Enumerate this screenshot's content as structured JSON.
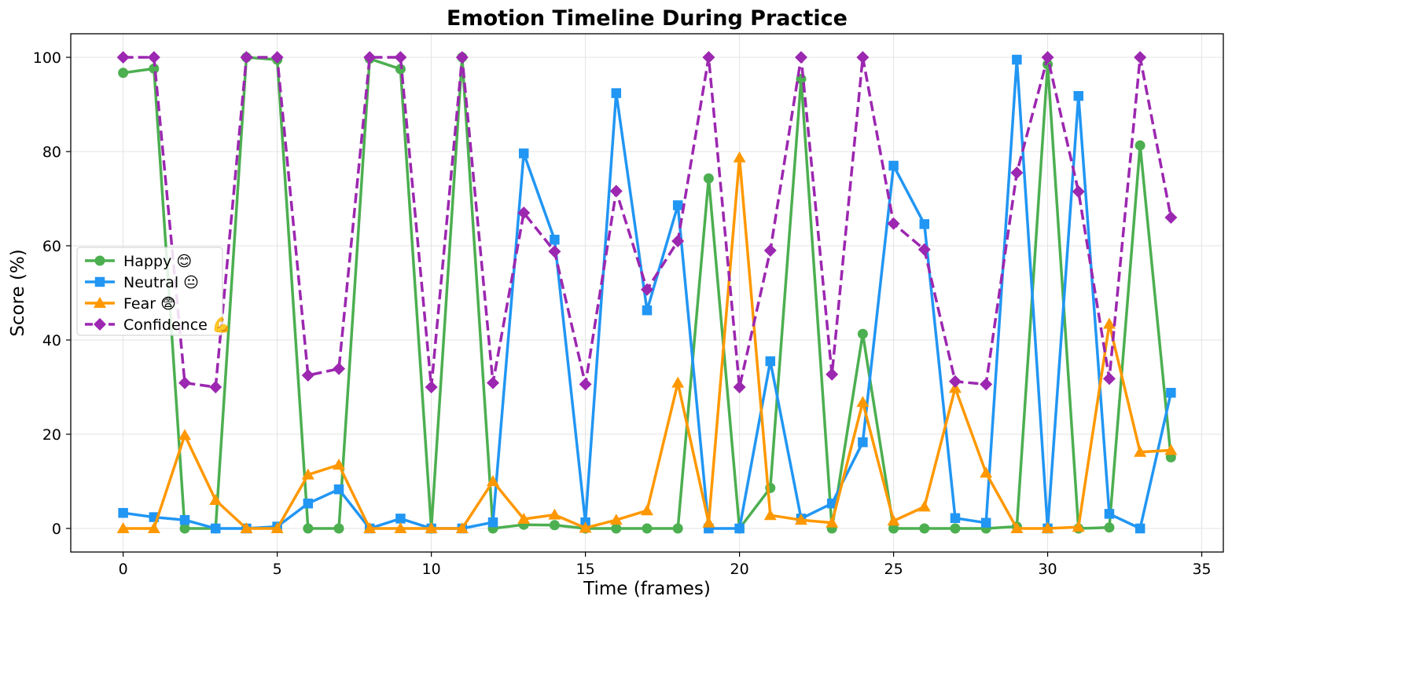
{
  "chart_data": {
    "type": "line",
    "title": "Emotion Timeline During Practice",
    "xlabel": "Time (frames)",
    "ylabel": "Score (%)",
    "xlim": [
      -1.7,
      35.7
    ],
    "ylim": [
      -5,
      105
    ],
    "xticks": [
      0,
      5,
      10,
      15,
      20,
      25,
      30,
      35
    ],
    "yticks": [
      0,
      20,
      40,
      60,
      80,
      100
    ],
    "grid": true,
    "legend_position": "center-left",
    "x": [
      0,
      1,
      2,
      3,
      4,
      5,
      6,
      7,
      8,
      9,
      10,
      11,
      12,
      13,
      14,
      15,
      16,
      17,
      18,
      19,
      20,
      21,
      22,
      23,
      24,
      25,
      26,
      27,
      28,
      29,
      30,
      31,
      32,
      33,
      34
    ],
    "series": [
      {
        "name": "Happy 😊",
        "color": "#4caf50",
        "marker": "circle",
        "dash": "solid",
        "values": [
          96.7,
          97.6,
          0,
          0,
          100,
          99.5,
          0,
          0,
          99.7,
          97.5,
          0,
          100,
          0,
          0.8,
          0.7,
          0,
          0,
          0,
          0,
          74.3,
          0,
          8.6,
          95.4,
          0,
          41.3,
          0,
          0,
          0,
          0,
          0.4,
          98.5,
          0,
          0.2,
          81.3,
          15.1
        ]
      },
      {
        "name": "Neutral 😐",
        "color": "#2196f3",
        "marker": "square",
        "dash": "solid",
        "values": [
          3.3,
          2.4,
          1.8,
          0,
          0,
          0.4,
          5.3,
          8.3,
          0,
          2.1,
          0,
          0,
          1.3,
          79.6,
          61.3,
          1.3,
          92.4,
          46.3,
          68.6,
          0,
          0,
          35.5,
          2.1,
          5.3,
          18.3,
          77,
          64.6,
          2.2,
          1.2,
          99.5,
          0,
          91.8,
          3.1,
          0,
          28.8
        ]
      },
      {
        "name": "Fear 😨",
        "color": "#ff9800",
        "marker": "triangle",
        "dash": "solid",
        "values": [
          0,
          0,
          19.8,
          6,
          0,
          0,
          11.4,
          13.5,
          0,
          0,
          0,
          0,
          10,
          2,
          2.9,
          0.1,
          1.8,
          3.8,
          30.9,
          1.2,
          78.7,
          2.8,
          1.8,
          1.2,
          26.8,
          1.6,
          4.6,
          29.8,
          11.8,
          0,
          0,
          0.3,
          43.4,
          16.2,
          16.6
        ]
      },
      {
        "name": "Confidence 💪",
        "color": "#9c27b0",
        "marker": "diamond",
        "dash": "dashed",
        "values": [
          100,
          100,
          30.9,
          30,
          100,
          100,
          32.5,
          33.9,
          100,
          100,
          30,
          100,
          30.9,
          67,
          58.8,
          30.6,
          71.6,
          50.7,
          61,
          100,
          30,
          59,
          100,
          32.7,
          100,
          64.7,
          59.2,
          31.2,
          30.6,
          75.5,
          100,
          71.5,
          31.8,
          100,
          66
        ]
      }
    ]
  }
}
